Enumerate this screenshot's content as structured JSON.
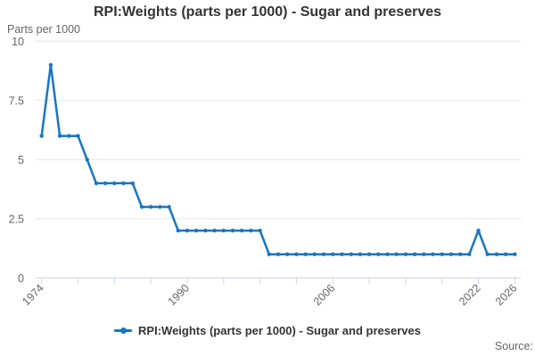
{
  "header": {
    "title": "RPI:Weights (parts per 1000) - Sugar and preserves"
  },
  "legend": {
    "label": "RPI:Weights (parts per 1000) - Sugar and preserves"
  },
  "footer": {
    "source": "Source:"
  },
  "chart_data": {
    "type": "line",
    "title": "RPI:Weights (parts per 1000) - Sugar and preserves",
    "ylabel": "Parts per 1000",
    "xlabel": "",
    "x": [
      1974,
      1975,
      1976,
      1977,
      1978,
      1979,
      1980,
      1981,
      1982,
      1983,
      1984,
      1985,
      1986,
      1987,
      1988,
      1989,
      1990,
      1991,
      1992,
      1993,
      1994,
      1995,
      1996,
      1997,
      1998,
      1999,
      2000,
      2001,
      2002,
      2003,
      2004,
      2005,
      2006,
      2007,
      2008,
      2009,
      2010,
      2011,
      2012,
      2013,
      2014,
      2015,
      2016,
      2017,
      2018,
      2019,
      2020,
      2021,
      2022,
      2023,
      2024,
      2025,
      2026
    ],
    "series": [
      {
        "name": "RPI:Weights (parts per 1000) - Sugar and preserves",
        "values": [
          6,
          9,
          6,
          6,
          6,
          5,
          4,
          4,
          4,
          4,
          4,
          3,
          3,
          3,
          3,
          2,
          2,
          2,
          2,
          2,
          2,
          2,
          2,
          2,
          2,
          1,
          1,
          1,
          1,
          1,
          1,
          1,
          1,
          1,
          1,
          1,
          1,
          1,
          1,
          1,
          1,
          1,
          1,
          1,
          1,
          1,
          1,
          1,
          2,
          1,
          1,
          1,
          1
        ]
      }
    ],
    "ylim": [
      0,
      10
    ],
    "yticks": [
      0,
      2.5,
      5,
      7.5,
      10
    ],
    "ytick_labels": [
      "0",
      "2.5",
      "5",
      "7.5",
      "10"
    ],
    "xticks": [
      1974,
      1978,
      1982,
      1986,
      1990,
      1994,
      1998,
      2002,
      2006,
      2010,
      2014,
      2018,
      2022,
      2026
    ],
    "xtick_labeled": [
      1974,
      1990,
      2006,
      2022,
      2026
    ],
    "grid": "horizontal",
    "legend_position": "bottom",
    "marker": "circle",
    "line_color": "#1776c3",
    "grid_color": "#e6e6e6",
    "axis_color": "#ccd6eb",
    "text_color": "#666666"
  }
}
